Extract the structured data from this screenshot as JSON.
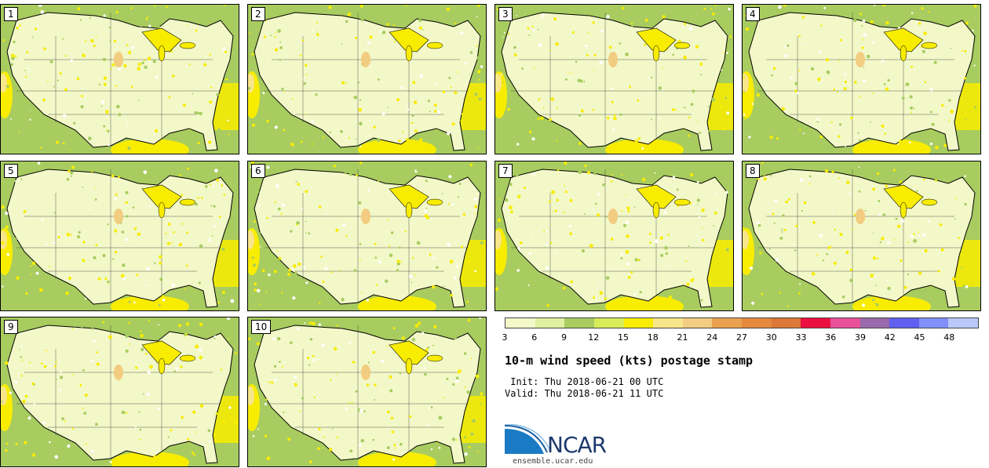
{
  "panels": [
    "1",
    "2",
    "3",
    "4",
    "5",
    "6",
    "7",
    "8",
    "9",
    "10"
  ],
  "colorbar": {
    "colors": [
      "#f2f8c8",
      "#e0f0a0",
      "#a8cc60",
      "#d8ec58",
      "#f8ec00",
      "#f8e68a",
      "#f2cc80",
      "#eaa250",
      "#e68a40",
      "#dc7838",
      "#ec1040",
      "#e8509a",
      "#9a6aac",
      "#6060f0",
      "#8090f8",
      "#b8c8f8"
    ],
    "ticks": [
      "3",
      "6",
      "9",
      "12",
      "15",
      "18",
      "21",
      "24",
      "27",
      "30",
      "33",
      "36",
      "39",
      "42",
      "45",
      "48"
    ]
  },
  "title": "10-m wind speed (kts) postage stamp",
  "init": " Init: Thu 2018-06-21 00 UTC",
  "valid": "Valid: Thu 2018-06-21 11 UTC",
  "logo": {
    "text": "NCAR",
    "url": "ensemble.ucar.edu"
  }
}
